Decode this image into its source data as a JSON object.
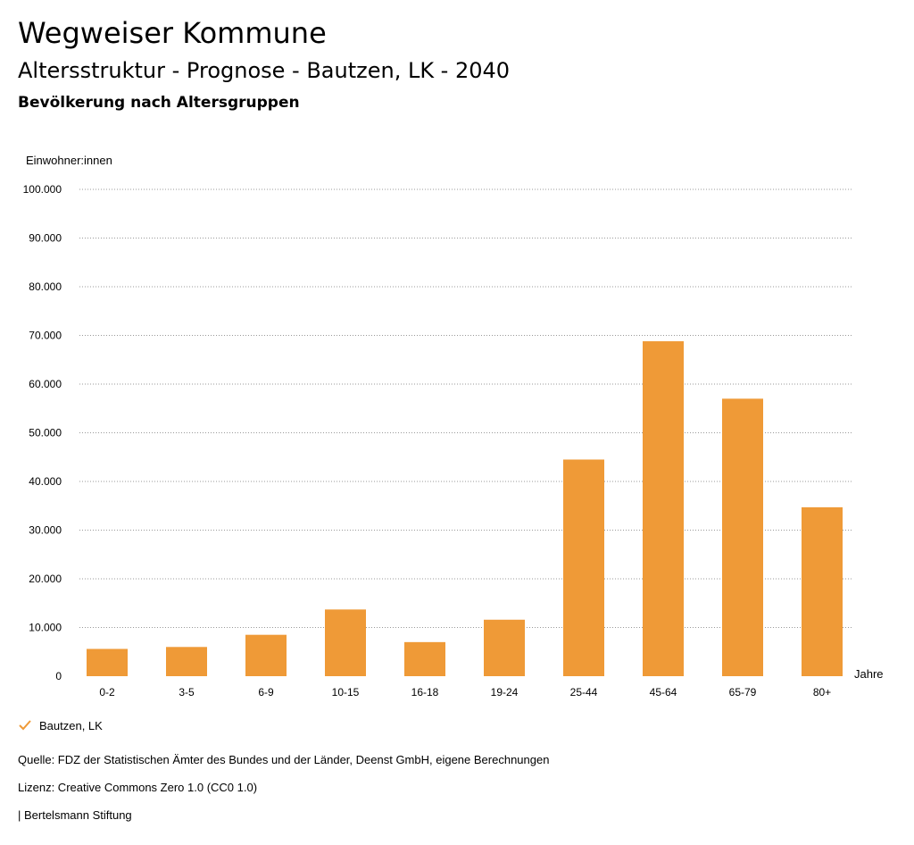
{
  "header": {
    "brand": "Wegweiser Kommune",
    "title": "Altersstruktur - Prognose - Bautzen, LK - 2040",
    "subtitle": "Bevölkerung nach Altersgruppen"
  },
  "chart_data": {
    "type": "bar",
    "title": "Altersstruktur - Prognose - Bautzen, LK - 2040",
    "subtitle": "Bevölkerung nach Altersgruppen",
    "ylabel": "Einwohner:innen",
    "xlabel": "Jahre",
    "categories": [
      "0-2",
      "3-5",
      "6-9",
      "10-15",
      "16-18",
      "19-24",
      "25-44",
      "45-64",
      "65-79",
      "80+"
    ],
    "series": [
      {
        "name": "Bautzen, LK",
        "color": "#ef9a37",
        "values": [
          5600,
          6000,
          8500,
          13700,
          7000,
          11600,
          44500,
          68800,
          57000,
          34700
        ]
      }
    ],
    "ylim": [
      0,
      100000
    ],
    "yticks": [
      0,
      10000,
      20000,
      30000,
      40000,
      50000,
      60000,
      70000,
      80000,
      90000,
      100000
    ],
    "ytick_labels": [
      "0",
      "10.000",
      "20.000",
      "30.000",
      "40.000",
      "50.000",
      "60.000",
      "70.000",
      "80.000",
      "90.000",
      "100.000"
    ],
    "grid": true,
    "legend_position": "bottom-left"
  },
  "legend": {
    "label": "Bautzen, LK",
    "icon": "check-icon",
    "color": "#ef9a37"
  },
  "footer": {
    "source": "Quelle: FDZ der Statistischen Ämter des Bundes und der Länder, Deenst GmbH, eigene Berechnungen",
    "license": "Lizenz: Creative Commons Zero 1.0 (CC0 1.0)",
    "publisher": "| Bertelsmann Stiftung"
  }
}
